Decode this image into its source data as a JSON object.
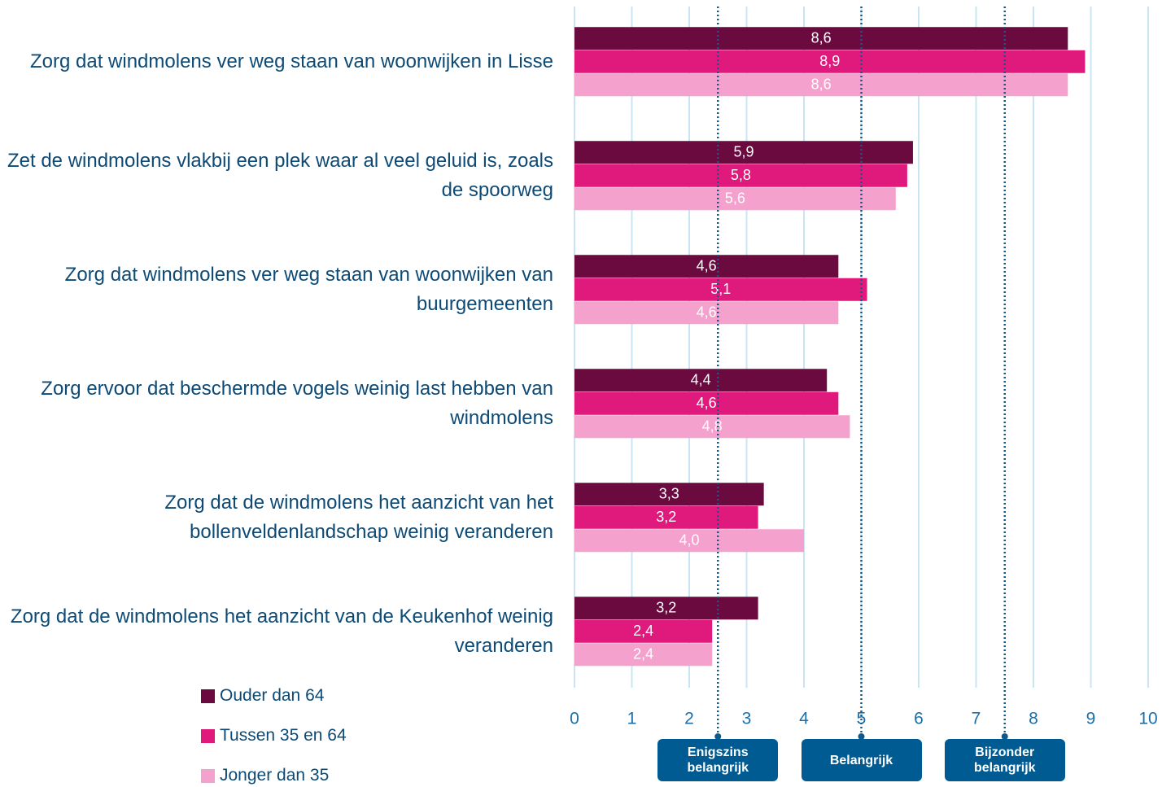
{
  "chart_data": {
    "type": "bar",
    "orientation": "horizontal",
    "categories": [
      "Zorg dat windmolens ver weg staan van woonwijken in Lisse",
      "Zet de windmolens vlakbij een plek waar al veel geluid is, zoals de spoorweg",
      "Zorg dat windmolens ver weg staan van woonwijken van buurgemeenten",
      "Zorg ervoor dat beschermde vogels weinig last hebben van windmolens",
      "Zorg dat de windmolens het aanzicht van het bollenveldenlandschap weinig veranderen",
      "Zorg dat de windmolens het aanzicht van de Keukenhof weinig veranderen"
    ],
    "series": [
      {
        "name": "Ouder dan 64",
        "color": "#6b0a3f",
        "values": [
          8.6,
          5.9,
          4.6,
          4.4,
          3.3,
          3.2
        ],
        "value_labels": [
          "8,6",
          "5,9",
          "4,6",
          "4,4",
          "3,3",
          "3,2"
        ]
      },
      {
        "name": "Tussen 35 en 64",
        "color": "#e0197d",
        "values": [
          8.9,
          5.8,
          5.1,
          4.6,
          3.2,
          2.4
        ],
        "value_labels": [
          "8,9",
          "5,8",
          "5,1",
          "4,6",
          "3,2",
          "2,4"
        ]
      },
      {
        "name": "Jonger dan 35",
        "color": "#f5a1cd",
        "values": [
          8.6,
          5.6,
          4.6,
          4.8,
          4.0,
          2.4
        ],
        "value_labels": [
          "8,6",
          "5,6",
          "4,6",
          "4,8",
          "4,0",
          "2,4"
        ]
      }
    ],
    "xlim": [
      0,
      10
    ],
    "xticks": [
      0,
      1,
      2,
      3,
      4,
      5,
      6,
      7,
      8,
      9,
      10
    ],
    "grid": true,
    "reference_lines": [
      {
        "value": 2.5,
        "label": "Enigszins belangrijk"
      },
      {
        "value": 5,
        "label": "Belangrijk"
      },
      {
        "value": 7.5,
        "label": "Bijzonder belangrijk"
      }
    ]
  }
}
